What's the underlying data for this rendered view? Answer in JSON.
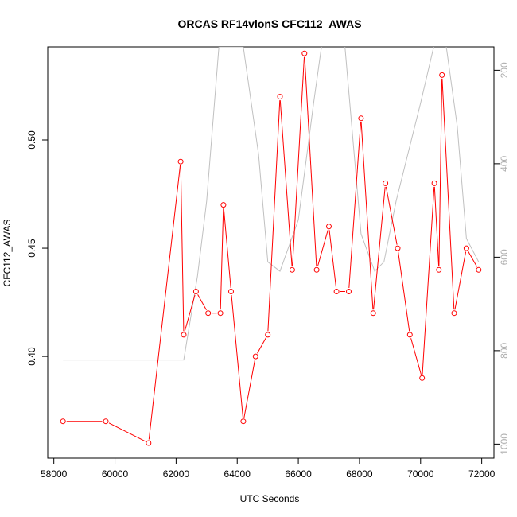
{
  "chart_data": {
    "type": "line",
    "title": "ORCAS RF14vlonS CFC112_AWAS",
    "xlabel": "UTC Seconds",
    "ylabel": "CFC112_AWAS",
    "xlim": [
      57800,
      72400
    ],
    "ylim": [
      0.353,
      0.543
    ],
    "x_ticks": [
      58000,
      60000,
      62000,
      64000,
      66000,
      68000,
      70000,
      72000
    ],
    "x_tick_labels": [
      "58000",
      "60000",
      "62000",
      "64000",
      "66000",
      "68000",
      "70000",
      "72000"
    ],
    "y_ticks": [
      0.4,
      0.45,
      0.5
    ],
    "y_tick_labels": [
      "0.40",
      "0.45",
      "0.50"
    ],
    "y2_ticks": [
      200,
      400,
      600,
      800,
      1000
    ],
    "y2_tick_labels": [
      "200",
      "400",
      "600",
      "800",
      "1000"
    ],
    "y2lim": [
      1030,
      150
    ],
    "colors": {
      "series": "#ff0000",
      "background_line": "#c0c0c0",
      "right_axis": "#b0b0b0"
    },
    "series": [
      {
        "style": "red line with open circle markers",
        "x": [
          58300,
          59700,
          61100,
          62150,
          62250,
          62650,
          63050,
          63450,
          63550,
          63800,
          64200,
          64600,
          65000,
          65400,
          65800,
          66200,
          66600,
          67000,
          67250,
          67650,
          68050,
          68450,
          68850,
          69250,
          69650,
          70050,
          70450,
          70600,
          70700,
          71100,
          71500,
          71900
        ],
        "y": [
          0.37,
          0.37,
          0.36,
          0.49,
          0.41,
          0.43,
          0.42,
          0.42,
          0.47,
          0.43,
          0.37,
          0.4,
          0.41,
          0.52,
          0.44,
          0.54,
          0.44,
          0.46,
          0.43,
          0.43,
          0.51,
          0.42,
          0.48,
          0.45,
          0.41,
          0.39,
          0.48,
          0.44,
          0.53,
          0.42,
          0.45,
          0.44
        ]
      },
      {
        "style": "gray background line (right axis)",
        "x": [
          58300,
          62250,
          62700,
          63000,
          63400,
          64200,
          64700,
          65000,
          65400,
          66000,
          66500,
          66800,
          67000,
          67500,
          68050,
          68500,
          68800,
          69200,
          70000,
          70500,
          70800,
          71200,
          71500,
          71900
        ],
        "y": [
          820,
          820,
          640,
          480,
          150,
          150,
          380,
          610,
          630,
          520,
          270,
          130,
          130,
          130,
          550,
          630,
          610,
          480,
          270,
          130,
          130,
          320,
          560,
          610
        ]
      }
    ]
  }
}
